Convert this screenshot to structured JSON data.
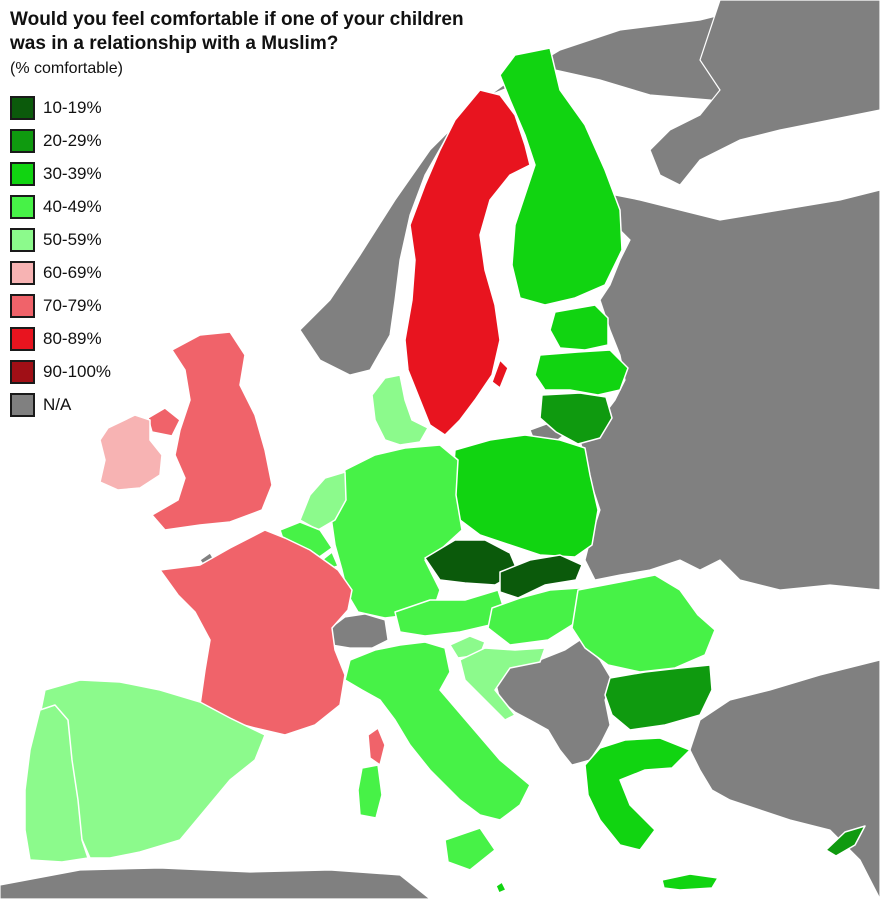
{
  "title": "Would you feel comfortable if one of your children was in a relationship with a Muslim?",
  "subtitle": "(% comfortable)",
  "legend": [
    {
      "label": "10-19%",
      "color": "#0b5a0b"
    },
    {
      "label": "20-29%",
      "color": "#0f9a0f"
    },
    {
      "label": "30-39%",
      "color": "#11d411"
    },
    {
      "label": "40-49%",
      "color": "#47f247"
    },
    {
      "label": "50-59%",
      "color": "#8cfa8c"
    },
    {
      "label": "60-69%",
      "color": "#f7b3b3"
    },
    {
      "label": "70-79%",
      "color": "#f0636a"
    },
    {
      "label": "80-89%",
      "color": "#e8141f"
    },
    {
      "label": "90-100%",
      "color": "#a00f16"
    },
    {
      "label": "N/A",
      "color": "#808080"
    }
  ],
  "colors": {
    "sea": "#ffffff",
    "no_data": "#808080",
    "border": "#ffffff"
  },
  "regions": [
    {
      "name": "Sweden",
      "bin": "80-89%"
    },
    {
      "name": "Finland",
      "bin": "30-39%"
    },
    {
      "name": "Estonia",
      "bin": "30-39%"
    },
    {
      "name": "Latvia",
      "bin": "30-39%"
    },
    {
      "name": "Lithuania",
      "bin": "20-29%"
    },
    {
      "name": "Poland",
      "bin": "30-39%"
    },
    {
      "name": "Germany",
      "bin": "40-49%"
    },
    {
      "name": "Denmark",
      "bin": "50-59%"
    },
    {
      "name": "Netherlands",
      "bin": "50-59%"
    },
    {
      "name": "Belgium",
      "bin": "40-49%"
    },
    {
      "name": "Luxembourg",
      "bin": "40-49%"
    },
    {
      "name": "France",
      "bin": "70-79%"
    },
    {
      "name": "United Kingdom",
      "bin": "70-79%"
    },
    {
      "name": "Ireland",
      "bin": "60-69%"
    },
    {
      "name": "Spain",
      "bin": "50-59%"
    },
    {
      "name": "Portugal",
      "bin": "50-59%"
    },
    {
      "name": "Italy",
      "bin": "40-49%"
    },
    {
      "name": "Austria",
      "bin": "40-49%"
    },
    {
      "name": "Czechia",
      "bin": "10-19%"
    },
    {
      "name": "Slovakia",
      "bin": "10-19%"
    },
    {
      "name": "Hungary",
      "bin": "40-49%"
    },
    {
      "name": "Slovenia",
      "bin": "50-59%"
    },
    {
      "name": "Croatia",
      "bin": "50-59%"
    },
    {
      "name": "Romania",
      "bin": "40-49%"
    },
    {
      "name": "Bulgaria",
      "bin": "20-29%"
    },
    {
      "name": "Greece",
      "bin": "30-39%"
    },
    {
      "name": "Cyprus",
      "bin": "20-29%"
    },
    {
      "name": "Malta",
      "bin": "30-39%"
    },
    {
      "name": "Switzerland",
      "bin": "N/A"
    },
    {
      "name": "Norway",
      "bin": "N/A"
    }
  ]
}
